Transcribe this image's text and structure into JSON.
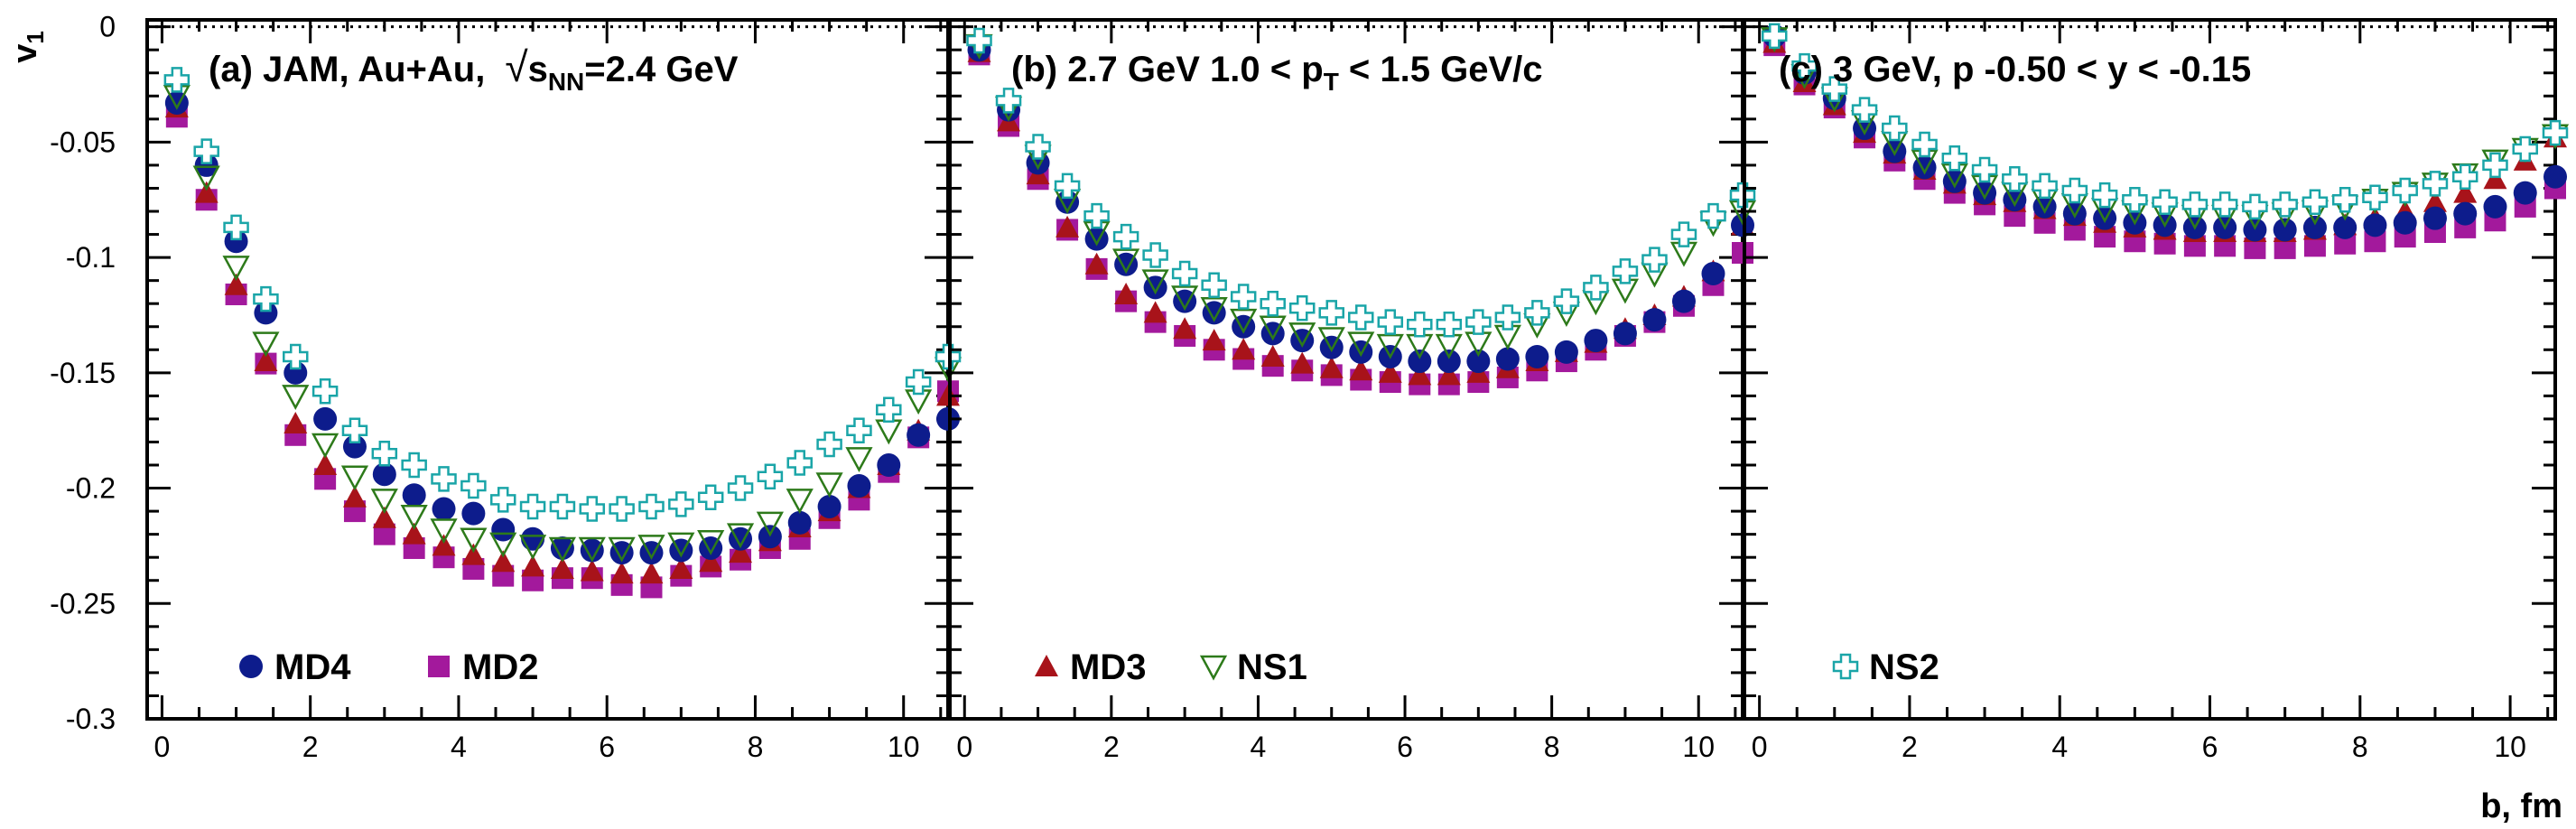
{
  "chart_data": {
    "type": "scatter",
    "title": "",
    "xlabel": "b, fm",
    "ylabel": "v",
    "ylabel_sub": "1",
    "xlim": [
      -0.2,
      10.6
    ],
    "ylim": [
      -0.3,
      0.003
    ],
    "x_ticks": [
      "0",
      "2",
      "4",
      "6",
      "8",
      "10"
    ],
    "y_ticks": [
      "0",
      "-0.05",
      "-0.1",
      "-0.15",
      "-0.2",
      "-0.25",
      "-0.3"
    ],
    "y_tick_values": [
      0,
      -0.05,
      -0.1,
      -0.15,
      -0.2,
      -0.25,
      -0.3
    ],
    "x_tick_values": [
      0,
      2,
      4,
      6,
      8,
      10
    ],
    "x": [
      0.2,
      0.6,
      1.0,
      1.4,
      1.8,
      2.2,
      2.6,
      3.0,
      3.4,
      3.8,
      4.2,
      4.6,
      5.0,
      5.4,
      5.8,
      6.2,
      6.6,
      7.0,
      7.4,
      7.8,
      8.2,
      8.6,
      9.0,
      9.4,
      9.8,
      10.2,
      10.6
    ],
    "series_styles": {
      "MD4": {
        "marker": "circle",
        "color": "#0d1c8c"
      },
      "MD2": {
        "marker": "square",
        "color": "#a3199c"
      },
      "MD3": {
        "marker": "triangle-up",
        "color": "#a8131a"
      },
      "NS1": {
        "marker": "triangle-down-open",
        "color": "#2d7a1a"
      },
      "NS2": {
        "marker": "cross-open",
        "color": "#1aa5a8"
      }
    },
    "panels": [
      {
        "title_main": "(a) JAM, Au+Au,",
        "title_sqrt": "s",
        "title_sub": "NN",
        "title_tail": "=2.4 GeV",
        "legend": [
          "MD4",
          "MD2"
        ],
        "series": [
          {
            "name": "MD4",
            "values": [
              -0.033,
              -0.06,
              -0.093,
              -0.124,
              -0.15,
              -0.17,
              -0.182,
              -0.194,
              -0.203,
              -0.209,
              -0.211,
              -0.218,
              -0.222,
              -0.226,
              -0.227,
              -0.228,
              -0.228,
              -0.227,
              -0.226,
              -0.222,
              -0.221,
              -0.215,
              -0.208,
              -0.199,
              -0.19,
              -0.177,
              -0.17
            ]
          },
          {
            "name": "MD2",
            "values": [
              -0.039,
              -0.075,
              -0.116,
              -0.146,
              -0.177,
              -0.196,
              -0.21,
              -0.22,
              -0.226,
              -0.23,
              -0.235,
              -0.238,
              -0.24,
              -0.239,
              -0.239,
              -0.242,
              -0.243,
              -0.238,
              -0.234,
              -0.231,
              -0.226,
              -0.222,
              -0.213,
              -0.205,
              -0.193,
              -0.178,
              -0.158
            ]
          },
          {
            "name": "MD3",
            "values": [
              -0.035,
              -0.072,
              -0.112,
              -0.145,
              -0.172,
              -0.19,
              -0.204,
              -0.213,
              -0.22,
              -0.225,
              -0.229,
              -0.232,
              -0.234,
              -0.235,
              -0.236,
              -0.237,
              -0.237,
              -0.235,
              -0.232,
              -0.228,
              -0.223,
              -0.217,
              -0.21,
              -0.2,
              -0.19,
              -0.175,
              -0.16
            ]
          },
          {
            "name": "NS1",
            "values": [
              -0.03,
              -0.065,
              -0.104,
              -0.137,
              -0.16,
              -0.181,
              -0.195,
              -0.205,
              -0.212,
              -0.218,
              -0.222,
              -0.224,
              -0.225,
              -0.226,
              -0.226,
              -0.226,
              -0.225,
              -0.224,
              -0.223,
              -0.22,
              -0.215,
              -0.205,
              -0.198,
              -0.187,
              -0.175,
              -0.162,
              -0.148
            ]
          },
          {
            "name": "NS2",
            "values": [
              -0.023,
              -0.054,
              -0.087,
              -0.118,
              -0.143,
              -0.158,
              -0.175,
              -0.185,
              -0.19,
              -0.196,
              -0.199,
              -0.205,
              -0.208,
              -0.208,
              -0.209,
              -0.209,
              -0.208,
              -0.207,
              -0.204,
              -0.2,
              -0.195,
              -0.189,
              -0.181,
              -0.175,
              -0.166,
              -0.154,
              -0.143
            ]
          }
        ]
      },
      {
        "title_main": "(b)  2.7 GeV  1.0 < p",
        "title_sub": "T",
        "title_tail": " < 1.5 GeV/c",
        "legend": [
          "MD3",
          "NS1"
        ],
        "series": [
          {
            "name": "MD4",
            "values": [
              -0.01,
              -0.036,
              -0.059,
              -0.076,
              -0.092,
              -0.103,
              -0.113,
              -0.119,
              -0.124,
              -0.13,
              -0.133,
              -0.136,
              -0.139,
              -0.141,
              -0.143,
              -0.145,
              -0.145,
              -0.145,
              -0.144,
              -0.143,
              -0.141,
              -0.136,
              -0.133,
              -0.127,
              -0.119,
              -0.107,
              -0.086
            ]
          },
          {
            "name": "MD2",
            "values": [
              -0.012,
              -0.043,
              -0.066,
              -0.088,
              -0.105,
              -0.119,
              -0.128,
              -0.134,
              -0.14,
              -0.144,
              -0.147,
              -0.149,
              -0.151,
              -0.153,
              -0.154,
              -0.155,
              -0.155,
              -0.154,
              -0.152,
              -0.149,
              -0.145,
              -0.14,
              -0.134,
              -0.128,
              -0.121,
              -0.112,
              -0.098
            ]
          },
          {
            "name": "MD3",
            "values": [
              -0.011,
              -0.041,
              -0.064,
              -0.087,
              -0.103,
              -0.116,
              -0.124,
              -0.131,
              -0.136,
              -0.14,
              -0.143,
              -0.146,
              -0.148,
              -0.149,
              -0.15,
              -0.151,
              -0.151,
              -0.15,
              -0.148,
              -0.145,
              -0.141,
              -0.137,
              -0.131,
              -0.125,
              -0.117,
              -0.106,
              -0.086
            ]
          },
          {
            "name": "NS1",
            "values": [
              -0.008,
              -0.035,
              -0.056,
              -0.075,
              -0.089,
              -0.101,
              -0.11,
              -0.117,
              -0.122,
              -0.127,
              -0.13,
              -0.133,
              -0.135,
              -0.137,
              -0.138,
              -0.138,
              -0.138,
              -0.137,
              -0.134,
              -0.129,
              -0.124,
              -0.119,
              -0.114,
              -0.107,
              -0.098,
              -0.085,
              -0.08
            ]
          },
          {
            "name": "NS2",
            "values": [
              -0.006,
              -0.032,
              -0.052,
              -0.069,
              -0.082,
              -0.091,
              -0.099,
              -0.107,
              -0.112,
              -0.117,
              -0.12,
              -0.122,
              -0.124,
              -0.126,
              -0.128,
              -0.129,
              -0.129,
              -0.128,
              -0.126,
              -0.124,
              -0.119,
              -0.113,
              -0.106,
              -0.101,
              -0.09,
              -0.082,
              -0.073
            ]
          }
        ]
      },
      {
        "title_main": "(c) 3 GeV, p   -0.50 < y < -0.15",
        "legend": [
          "NS2"
        ],
        "series": [
          {
            "name": "MD4",
            "values": [
              -0.004,
              -0.02,
              -0.031,
              -0.044,
              -0.054,
              -0.061,
              -0.067,
              -0.072,
              -0.075,
              -0.078,
              -0.081,
              -0.083,
              -0.085,
              -0.086,
              -0.087,
              -0.087,
              -0.088,
              -0.088,
              -0.087,
              -0.087,
              -0.086,
              -0.085,
              -0.083,
              -0.081,
              -0.078,
              -0.072,
              -0.065
            ]
          },
          {
            "name": "MD2",
            "values": [
              -0.008,
              -0.025,
              -0.035,
              -0.048,
              -0.058,
              -0.066,
              -0.072,
              -0.077,
              -0.082,
              -0.085,
              -0.088,
              -0.091,
              -0.093,
              -0.094,
              -0.095,
              -0.095,
              -0.096,
              -0.096,
              -0.095,
              -0.094,
              -0.093,
              -0.091,
              -0.089,
              -0.087,
              -0.084,
              -0.078,
              -0.07
            ]
          },
          {
            "name": "MD3",
            "values": [
              -0.007,
              -0.024,
              -0.034,
              -0.046,
              -0.055,
              -0.062,
              -0.068,
              -0.073,
              -0.076,
              -0.079,
              -0.082,
              -0.085,
              -0.087,
              -0.088,
              -0.089,
              -0.089,
              -0.089,
              -0.089,
              -0.088,
              -0.086,
              -0.083,
              -0.08,
              -0.076,
              -0.072,
              -0.066,
              -0.058,
              -0.048
            ]
          },
          {
            "name": "NS1",
            "values": [
              -0.005,
              -0.021,
              -0.031,
              -0.041,
              -0.05,
              -0.058,
              -0.064,
              -0.069,
              -0.072,
              -0.075,
              -0.077,
              -0.079,
              -0.08,
              -0.081,
              -0.082,
              -0.082,
              -0.082,
              -0.081,
              -0.08,
              -0.078,
              -0.075,
              -0.072,
              -0.068,
              -0.064,
              -0.058,
              -0.053,
              -0.047
            ]
          },
          {
            "name": "NS2",
            "values": [
              -0.004,
              -0.017,
              -0.027,
              -0.036,
              -0.044,
              -0.051,
              -0.057,
              -0.062,
              -0.066,
              -0.069,
              -0.071,
              -0.073,
              -0.075,
              -0.076,
              -0.077,
              -0.077,
              -0.078,
              -0.077,
              -0.076,
              -0.075,
              -0.074,
              -0.071,
              -0.068,
              -0.065,
              -0.06,
              -0.053,
              -0.046
            ]
          }
        ]
      }
    ]
  }
}
